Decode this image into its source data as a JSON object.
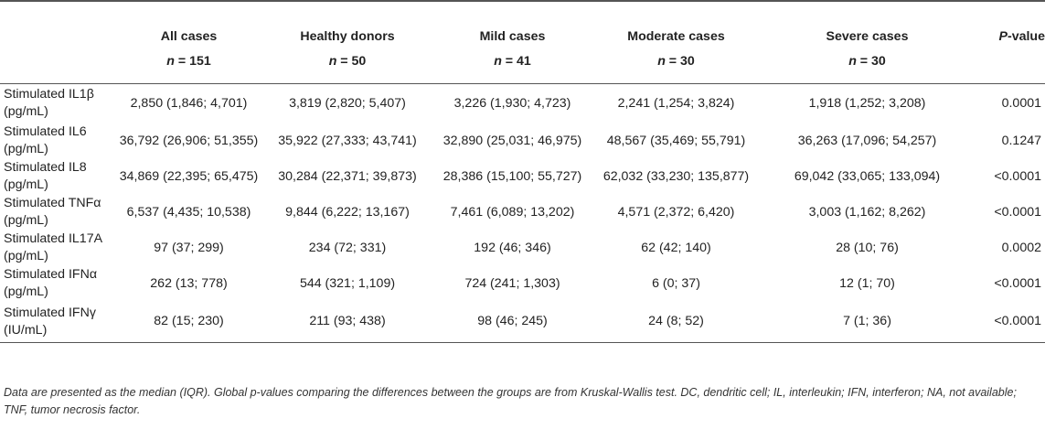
{
  "header": {
    "columns": [
      {
        "title": "",
        "n_label": "",
        "n_value": ""
      },
      {
        "title": "All cases",
        "n_label": "n",
        "n_value": " = 151"
      },
      {
        "title": "Healthy donors",
        "n_label": "n",
        "n_value": " = 50"
      },
      {
        "title": "Mild cases",
        "n_label": "n",
        "n_value": " = 41"
      },
      {
        "title": "Moderate cases",
        "n_label": "n",
        "n_value": " = 30"
      },
      {
        "title": "Severe cases",
        "n_label": "n",
        "n_value": " = 30"
      }
    ],
    "pvalue_italic": "P",
    "pvalue_rest": "-value"
  },
  "rows": [
    {
      "label": "Stimulated IL1β (pg/mL)",
      "all": "2,850 (1,846; 4,701)",
      "healthy": "3,819 (2,820; 5,407)",
      "mild": "3,226 (1,930; 4,723)",
      "moderate": "2,241 (1,254; 3,824)",
      "severe": "1,918 (1,252; 3,208)",
      "p": "0.0001"
    },
    {
      "label": "Stimulated IL6 (pg/mL)",
      "all": "36,792 (26,906; 51,355)",
      "healthy": "35,922 (27,333; 43,741)",
      "mild": "32,890 (25,031; 46,975)",
      "moderate": "48,567 (35,469; 55,791)",
      "severe": "36,263 (17,096; 54,257)",
      "p": "0.1247"
    },
    {
      "label": "Stimulated IL8 (pg/mL)",
      "all": "34,869 (22,395; 65,475)",
      "healthy": "30,284 (22,371; 39,873)",
      "mild": "28,386 (15,100; 55,727)",
      "moderate": "62,032 (33,230; 135,877)",
      "severe": "69,042 (33,065; 133,094)",
      "p": "<0.0001"
    },
    {
      "label": "Stimulated TNFα (pg/mL)",
      "all": "6,537 (4,435; 10,538)",
      "healthy": "9,844 (6,222; 13,167)",
      "mild": "7,461 (6,089; 13,202)",
      "moderate": "4,571 (2,372; 6,420)",
      "severe": "3,003 (1,162; 8,262)",
      "p": "<0.0001"
    },
    {
      "label": "Stimulated IL17A (pg/mL)",
      "all": "97 (37; 299)",
      "healthy": "234 (72; 331)",
      "mild": "192 (46; 346)",
      "moderate": "62 (42; 140)",
      "severe": "28 (10; 76)",
      "p": "0.0002"
    },
    {
      "label": "Stimulated IFNα (pg/mL)",
      "all": "262 (13; 778)",
      "healthy": "544 (321; 1,109)",
      "mild": "724 (241; 1,303)",
      "moderate": "6 (0; 37)",
      "severe": "12 (1; 70)",
      "p": "<0.0001"
    },
    {
      "label": "Stimulated IFNγ (IU/mL)",
      "all": "82 (15; 230)",
      "healthy": "211 (93; 438)",
      "mild": "98 (46; 245)",
      "moderate": "24 (8; 52)",
      "severe": "7 (1; 36)",
      "p": "<0.0001"
    }
  ],
  "footnote": "Data are presented as the median (IQR). Global p-values comparing the differences between the groups are from Kruskal-Wallis test. DC, dendritic cell; IL, interleukin; IFN, interferon; NA, not available; TNF, tumor necrosis factor."
}
